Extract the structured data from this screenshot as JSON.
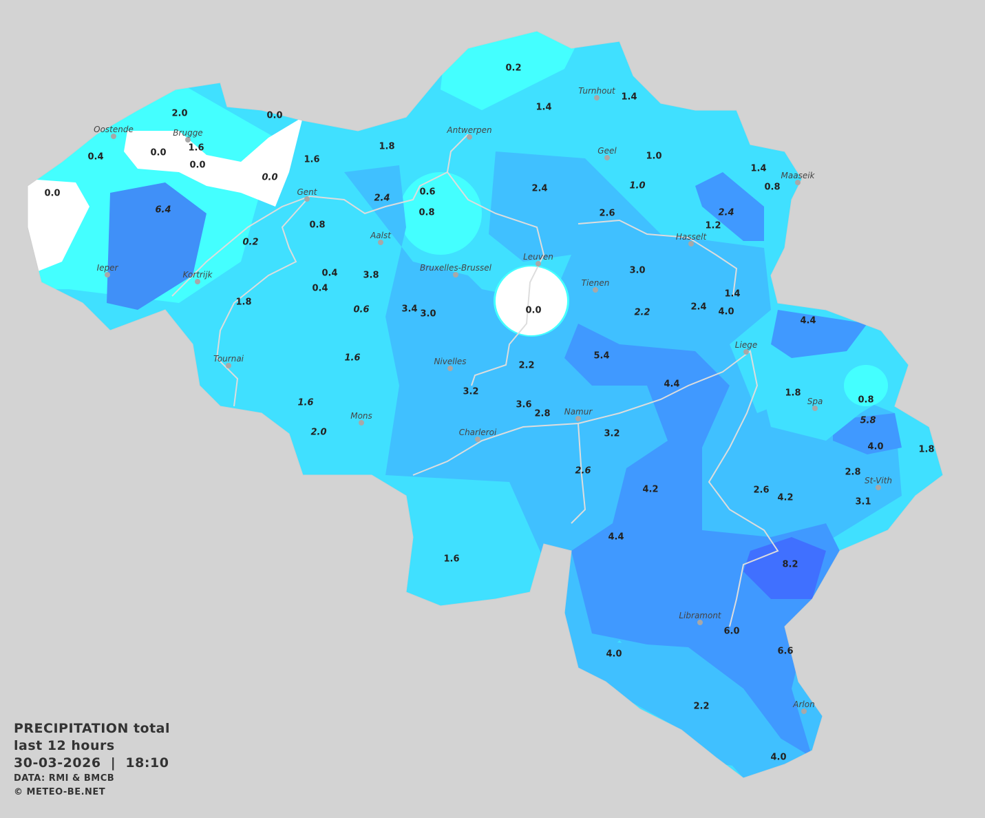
{
  "legend": {
    "title": "PRECIPITATION total",
    "period": "last 12 hours",
    "datetime": "30-03-2026  |  18:10",
    "data_source": "DATA: RMI & BMCB",
    "copyright": "© METEO-BE.NET"
  },
  "colors": {
    "background": "#d3d3d3",
    "zero": "#ffffff",
    "very_light": "#44ffff",
    "light": "#40e0ff",
    "medium": "#40c0ff",
    "heavy": "#4099ff",
    "very_heavy": "#4070ff",
    "rivers": "#dddddd"
  },
  "cities": [
    "Oostende",
    "Brugge",
    "Gent",
    "Antwerpen",
    "Turnhout",
    "Geel",
    "Maaseik",
    "Hasselt",
    "Aalst",
    "Bruxelles-Brussel",
    "Leuven",
    "Tienen",
    "Ieper",
    "Kortrijk",
    "Liege",
    "Tournai",
    "Nivelles",
    "Mons",
    "Charleroi",
    "Namur",
    "Spa",
    "St-Vith",
    "Libramont",
    "Arlon"
  ],
  "values": [
    {
      "v": "0.2"
    },
    {
      "v": "1.4"
    },
    {
      "v": "1.4"
    },
    {
      "v": "2.0"
    },
    {
      "v": "0.0"
    },
    {
      "v": "1.6"
    },
    {
      "v": "0.4"
    },
    {
      "v": "0.0"
    },
    {
      "v": "0.0"
    },
    {
      "v": "0.0",
      "i": true
    },
    {
      "v": "0.0"
    },
    {
      "v": "6.4",
      "i": true
    },
    {
      "v": "1.6"
    },
    {
      "v": "1.8"
    },
    {
      "v": "2.4",
      "i": true
    },
    {
      "v": "0.6"
    },
    {
      "v": "0.8"
    },
    {
      "v": "0.8"
    },
    {
      "v": "0.2",
      "i": true
    },
    {
      "v": "1.0"
    },
    {
      "v": "1.0",
      "i": true
    },
    {
      "v": "2.4"
    },
    {
      "v": "2.6"
    },
    {
      "v": "1.4"
    },
    {
      "v": "0.8"
    },
    {
      "v": "2.4",
      "i": true
    },
    {
      "v": "1.2"
    },
    {
      "v": "0.4"
    },
    {
      "v": "0.4"
    },
    {
      "v": "3.8"
    },
    {
      "v": "1.8"
    },
    {
      "v": "0.6",
      "i": true
    },
    {
      "v": "3.4"
    },
    {
      "v": "3.0"
    },
    {
      "v": "0.0"
    },
    {
      "v": "3.0"
    },
    {
      "v": "2.2",
      "i": true
    },
    {
      "v": "2.4"
    },
    {
      "v": "4.0"
    },
    {
      "v": "1.4"
    },
    {
      "v": "4.4"
    },
    {
      "v": "1.6",
      "i": true
    },
    {
      "v": "5.4"
    },
    {
      "v": "2.2"
    },
    {
      "v": "3.2"
    },
    {
      "v": "4.4"
    },
    {
      "v": "1.8"
    },
    {
      "v": "0.8"
    },
    {
      "v": "1.6",
      "i": true
    },
    {
      "v": "3.6"
    },
    {
      "v": "2.8"
    },
    {
      "v": "5.8",
      "i": true
    },
    {
      "v": "2.0",
      "i": true
    },
    {
      "v": "3.2"
    },
    {
      "v": "4.0"
    },
    {
      "v": "1.8"
    },
    {
      "v": "2.6",
      "i": true
    },
    {
      "v": "2.8"
    },
    {
      "v": "4.2"
    },
    {
      "v": "2.6"
    },
    {
      "v": "4.2"
    },
    {
      "v": "3.1"
    },
    {
      "v": "4.4"
    },
    {
      "v": "1.6"
    },
    {
      "v": "8.2"
    },
    {
      "v": "6.0"
    },
    {
      "v": "4.0"
    },
    {
      "v": "6.6"
    },
    {
      "v": "2.2"
    },
    {
      "v": "4.0"
    }
  ]
}
